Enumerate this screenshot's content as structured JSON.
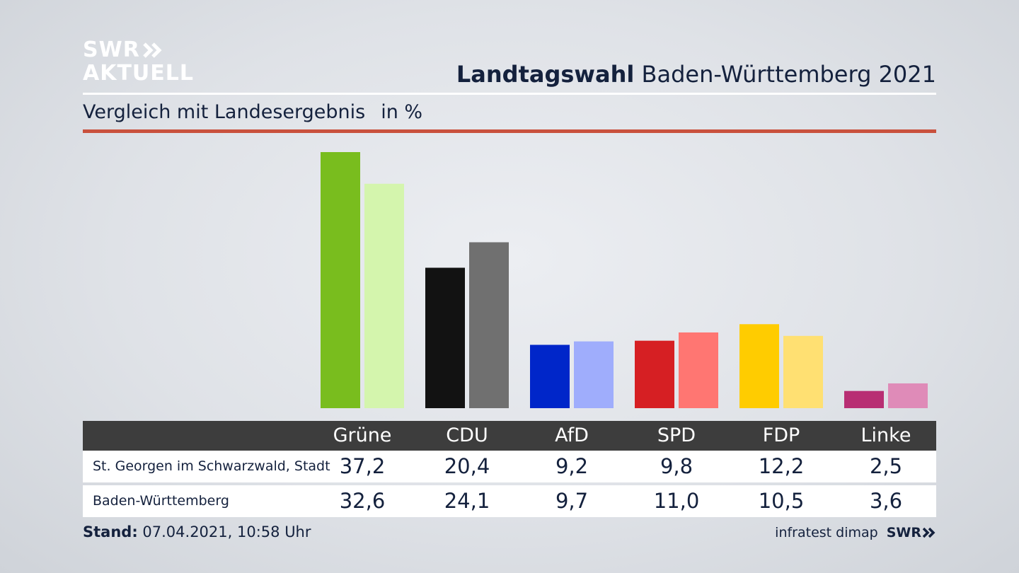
{
  "logo": {
    "line1": "SWR",
    "line2": "AKTUELL"
  },
  "header": {
    "title_bold": "Landtagswahl",
    "title_rest": "Baden-Württemberg 2021"
  },
  "subheader": {
    "text": "Vergleich mit Landesergebnis",
    "unit": "in %"
  },
  "table": {
    "rows": [
      {
        "label": "St. Georgen im Schwarzwald, Stadt",
        "values": [
          "37,2",
          "20,4",
          "9,2",
          "9,8",
          "12,2",
          "2,5"
        ]
      },
      {
        "label": "Baden-Württemberg",
        "values": [
          "32,6",
          "24,1",
          "9,7",
          "11,0",
          "10,5",
          "3,6"
        ]
      }
    ]
  },
  "footer": {
    "stand_label": "Stand:",
    "stand_value": "07.04.2021, 10:58 Uhr",
    "source": "infratest dimap",
    "brand": "SWR"
  },
  "chart_data": {
    "type": "bar",
    "categories": [
      "Grüne",
      "CDU",
      "AfD",
      "SPD",
      "FDP",
      "Linke"
    ],
    "series": [
      {
        "name": "St. Georgen im Schwarzwald, Stadt",
        "values": [
          37.2,
          20.4,
          9.2,
          9.8,
          12.2,
          2.5
        ],
        "colors": [
          "#79bd1e",
          "#121212",
          "#0026c9",
          "#d61f23",
          "#ffcc00",
          "#b82e73"
        ]
      },
      {
        "name": "Baden-Württemberg",
        "values": [
          32.6,
          24.1,
          9.7,
          11.0,
          10.5,
          3.6
        ],
        "colors": [
          "#d4f5ad",
          "#707070",
          "#9fadfc",
          "#ff7672",
          "#ffe072",
          "#df8bb8"
        ]
      }
    ],
    "ylim": [
      0,
      37.2
    ],
    "grid": false
  }
}
